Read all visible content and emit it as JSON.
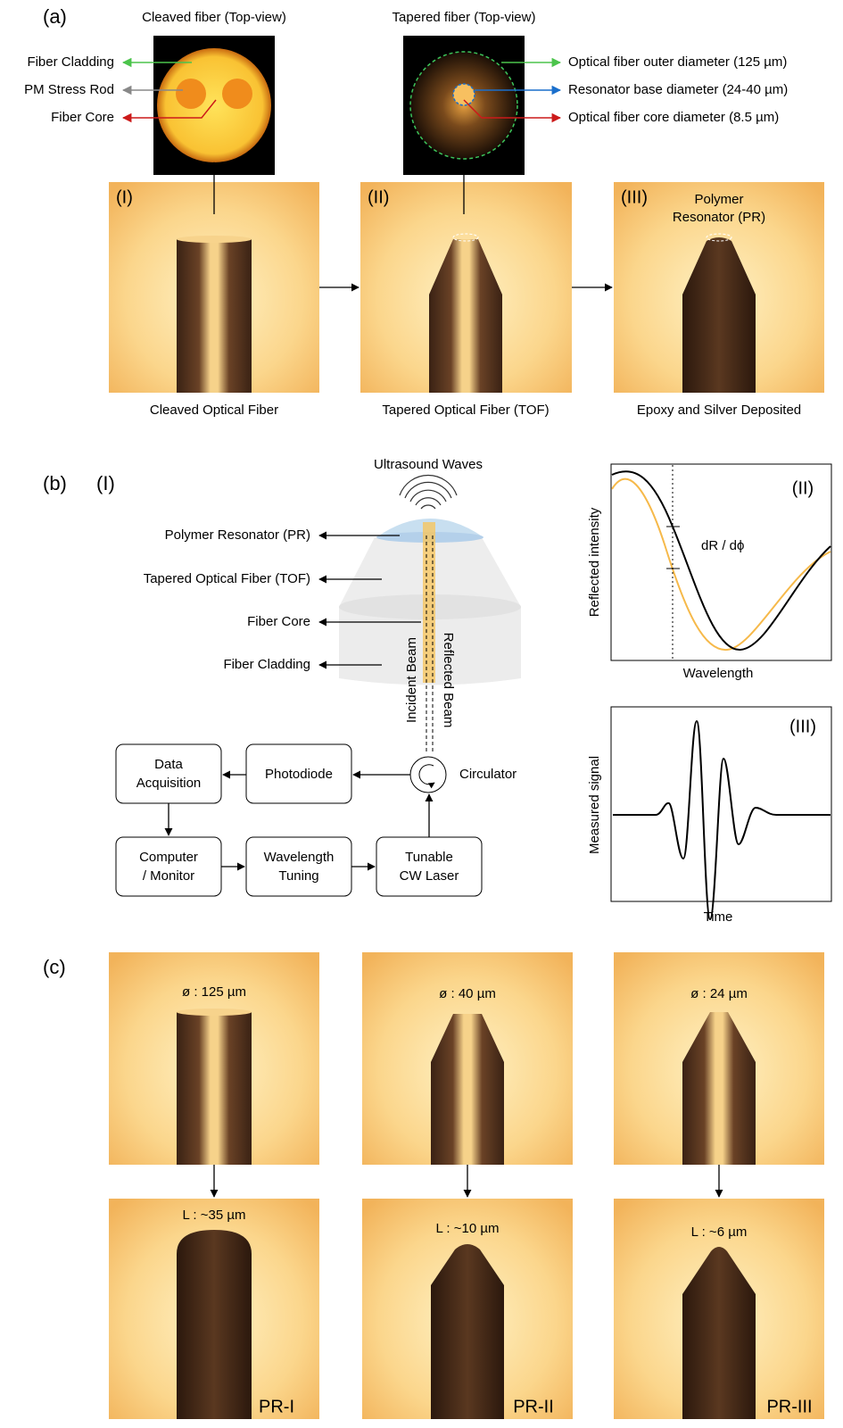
{
  "panel_a": {
    "label": "(a)",
    "top_views": [
      {
        "title": "Cleaved fiber (Top-view)",
        "labels": [
          "Fiber Cladding",
          "PM Stress Rod",
          "Fiber Core"
        ]
      },
      {
        "title": "Tapered fiber (Top-view)",
        "labels": [
          "Optical fiber outer diameter (125 µm)",
          "Resonator base diameter (24-40 µm)",
          "Optical fiber core diameter (8.5 µm)"
        ]
      }
    ],
    "steps": [
      {
        "numeral": "(I)",
        "caption": "Cleaved Optical Fiber"
      },
      {
        "numeral": "(II)",
        "caption": "Tapered Optical Fiber (TOF)"
      },
      {
        "numeral": "(III)",
        "caption": "Epoxy and Silver Deposited",
        "note": [
          "Polymer",
          "Resonator (PR)"
        ]
      }
    ]
  },
  "panel_b": {
    "label": "(b)",
    "sub": "(I)",
    "waves": "Ultrasound Waves",
    "parts": [
      "Polymer Resonator (PR)",
      "Tapered Optical Fiber (TOF)",
      "Fiber Core",
      "Fiber Cladding"
    ],
    "beams": [
      "Incident Beam",
      "Reflected Beam"
    ],
    "circulator": "Circulator",
    "boxes": [
      [
        "Data",
        "Acquisition"
      ],
      [
        "Photodiode"
      ],
      [
        "Computer",
        "/ Monitor"
      ],
      [
        "Wavelength",
        "Tuning"
      ],
      [
        "Tunable",
        "CW Laser"
      ]
    ],
    "spectrum": {
      "label": "(II)",
      "y_label": "Reflected intensity",
      "x_label": "Wavelength",
      "annotation": "dR / dϕ"
    },
    "signal": {
      "label": "(III)",
      "y_label": "Measured signal",
      "x_label": "Time"
    }
  },
  "panel_c": {
    "label": "(c)",
    "columns": [
      {
        "diameter": "ø : 125 µm",
        "length": "L : ~35 µm",
        "name": "PR-I"
      },
      {
        "diameter": "ø : 40 µm",
        "length": "L : ~10 µm",
        "name": "PR-II"
      },
      {
        "diameter": "ø : 24 µm",
        "length": "L : ~6 µm",
        "name": "PR-III"
      }
    ]
  }
}
